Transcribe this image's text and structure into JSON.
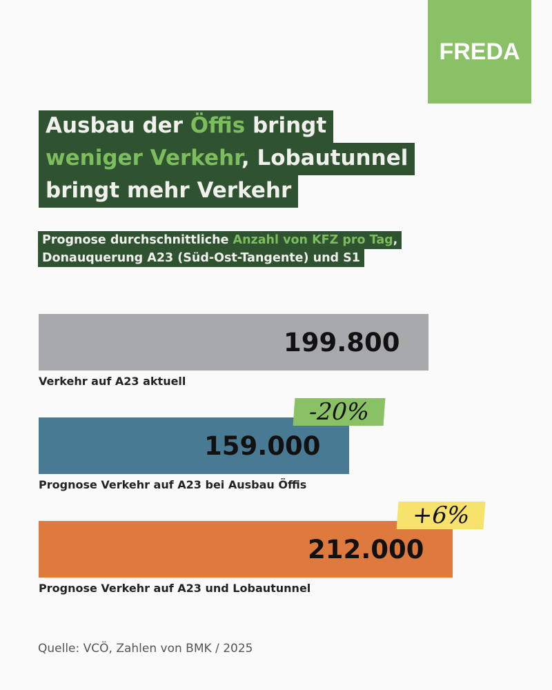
{
  "logo": "FREDA",
  "title": {
    "line1": [
      "Ausbau der ",
      "Öffis",
      " bringt"
    ],
    "line2": [
      "weniger Verkehr",
      ", Lobautunnel"
    ],
    "line3": "bringt mehr Verkehr"
  },
  "subtitle": {
    "line1": [
      "Prognose durchschnittliche ",
      "Anzahl von KFZ pro Tag",
      ","
    ],
    "line2": "Donauquerung A23 (Süd-Ost-Tangente) und S1"
  },
  "chart_data": {
    "type": "bar",
    "orientation": "horizontal",
    "categories": [
      "Verkehr auf A23 aktuell",
      "Prognose Verkehr auf A23 bei Ausbau Öffis",
      "Prognose Verkehr auf A23 und Lobautunnel"
    ],
    "values": [
      199800,
      159000,
      212000
    ],
    "value_labels": [
      "199.800",
      "159.000",
      "212.000"
    ],
    "colors": [
      "#a7a9ac",
      "#497a94",
      "#de7a3d"
    ],
    "annotations": [
      {
        "category": 1,
        "text": "-20%",
        "color": "#8bc166"
      },
      {
        "category": 2,
        "text": "+6%",
        "color": "#f7e36b"
      }
    ]
  },
  "source": "Quelle: VCÖ, Zahlen von BMK / 2025"
}
